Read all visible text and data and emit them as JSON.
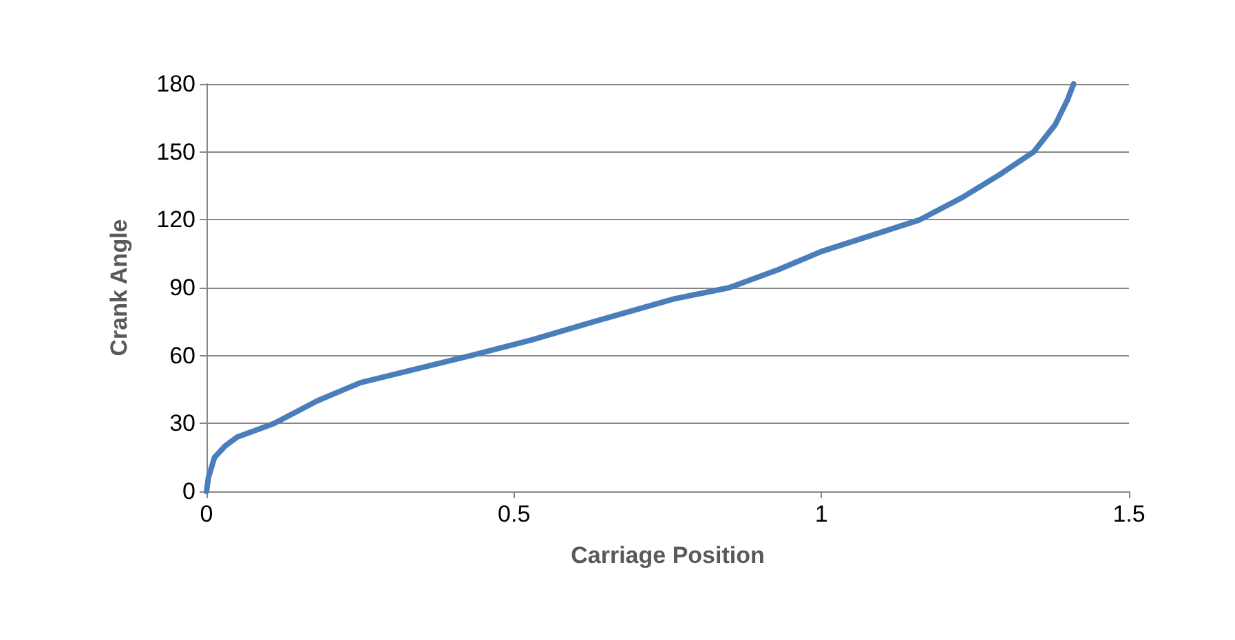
{
  "chart_data": {
    "type": "line",
    "xlabel": "Carriage Position",
    "ylabel": "Crank Angle",
    "series": [
      {
        "color": "#4a7ebb",
        "x": [
          0,
          0.003,
          0.013,
          0.03,
          0.05,
          0.08,
          0.11,
          0.18,
          0.25,
          0.34,
          0.43,
          0.53,
          0.63,
          0.76,
          0.85,
          0.93,
          1.0,
          1.08,
          1.16,
          1.23,
          1.29,
          1.345,
          1.38,
          1.4,
          1.41
        ],
        "values": [
          0,
          6,
          15,
          20,
          24,
          27,
          30,
          40,
          48,
          54,
          60,
          67,
          75,
          85,
          90,
          98,
          106,
          113,
          120,
          130,
          140,
          150,
          162,
          173,
          180
        ]
      }
    ],
    "xlim": [
      0,
      1.5
    ],
    "xticks": [
      0,
      0.5,
      1,
      1.5
    ],
    "ylim": [
      0,
      180
    ],
    "yticks": [
      0,
      30,
      60,
      90,
      120,
      150,
      180
    ],
    "grid": "y",
    "marker": "none",
    "line_style": "solid"
  }
}
